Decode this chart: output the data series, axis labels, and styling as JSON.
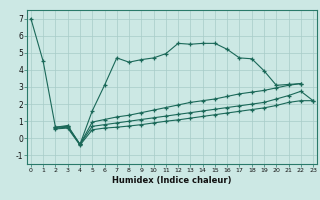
{
  "xlabel": "Humidex (Indice chaleur)",
  "background_color": "#cce8e4",
  "grid_color": "#a8ccc8",
  "line_color": "#1a6858",
  "lines": [
    {
      "x": [
        0,
        1,
        2,
        3,
        4,
        5,
        6,
        7,
        8,
        9,
        10,
        11,
        12,
        13,
        14,
        15,
        16,
        17,
        18,
        19,
        20,
        21,
        22
      ],
      "y": [
        7.0,
        4.5,
        0.65,
        0.75,
        -0.35,
        1.6,
        3.1,
        4.7,
        4.45,
        4.6,
        4.7,
        4.95,
        5.55,
        5.5,
        5.55,
        5.55,
        5.2,
        4.7,
        4.65,
        3.95,
        3.1,
        3.15,
        3.2
      ]
    },
    {
      "x": [
        2,
        3,
        4,
        5,
        6,
        7,
        8,
        9,
        10,
        11,
        12,
        13,
        14,
        15,
        16,
        17,
        18,
        19,
        20,
        21,
        22
      ],
      "y": [
        0.65,
        0.7,
        -0.35,
        0.95,
        1.1,
        1.25,
        1.35,
        1.5,
        1.65,
        1.8,
        1.95,
        2.1,
        2.2,
        2.3,
        2.45,
        2.6,
        2.7,
        2.8,
        2.95,
        3.1,
        3.2
      ]
    },
    {
      "x": [
        2,
        3,
        4,
        5,
        6,
        7,
        8,
        9,
        10,
        11,
        12,
        13,
        14,
        15,
        16,
        17,
        18,
        19,
        20,
        21,
        22,
        23
      ],
      "y": [
        0.6,
        0.65,
        -0.35,
        0.7,
        0.8,
        0.9,
        1.0,
        1.1,
        1.2,
        1.3,
        1.4,
        1.5,
        1.6,
        1.7,
        1.8,
        1.9,
        2.0,
        2.1,
        2.3,
        2.5,
        2.75,
        2.2
      ]
    },
    {
      "x": [
        2,
        3,
        4,
        5,
        6,
        7,
        8,
        9,
        10,
        11,
        12,
        13,
        14,
        15,
        16,
        17,
        18,
        19,
        20,
        21,
        22,
        23
      ],
      "y": [
        0.55,
        0.6,
        -0.4,
        0.5,
        0.6,
        0.65,
        0.72,
        0.8,
        0.9,
        1.0,
        1.08,
        1.18,
        1.28,
        1.38,
        1.48,
        1.58,
        1.68,
        1.78,
        1.92,
        2.1,
        2.2,
        2.2
      ]
    }
  ],
  "xlim": [
    -0.3,
    23.3
  ],
  "ylim": [
    -1.5,
    7.5
  ],
  "yticks": [
    -1,
    0,
    1,
    2,
    3,
    4,
    5,
    6,
    7
  ],
  "xticks": [
    0,
    1,
    2,
    3,
    4,
    5,
    6,
    7,
    8,
    9,
    10,
    11,
    12,
    13,
    14,
    15,
    16,
    17,
    18,
    19,
    20,
    21,
    22,
    23
  ]
}
